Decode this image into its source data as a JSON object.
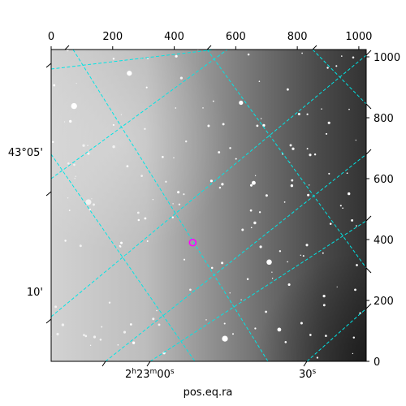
{
  "chart_data": {
    "type": "image",
    "colormap": "gray",
    "xlabel": "pos.eq.ra",
    "pixel_axes": {
      "x": {
        "range": [
          0,
          1024
        ],
        "ticks": [
          0,
          200,
          400,
          600,
          800,
          1000
        ]
      },
      "y": {
        "range": [
          0,
          1024
        ],
        "ticks": [
          0,
          200,
          400,
          600,
          800,
          1000
        ]
      }
    },
    "world_ticks": {
      "ra": [
        {
          "label_main": "2",
          "label_sup1": "h",
          "label_mid": "23",
          "label_sup2": "m",
          "label_end": "00",
          "label_sup3": "s"
        },
        {
          "label_main": "30",
          "label_sup1": "s"
        }
      ],
      "dec": [
        {
          "label": "43°05'"
        },
        {
          "label": "10'"
        }
      ]
    },
    "grid": {
      "enabled": true,
      "color": "#00e5e5",
      "style": "dashed"
    },
    "marker": {
      "type": "circle",
      "x": 460,
      "y": 390,
      "color": "#ff00ff"
    }
  }
}
